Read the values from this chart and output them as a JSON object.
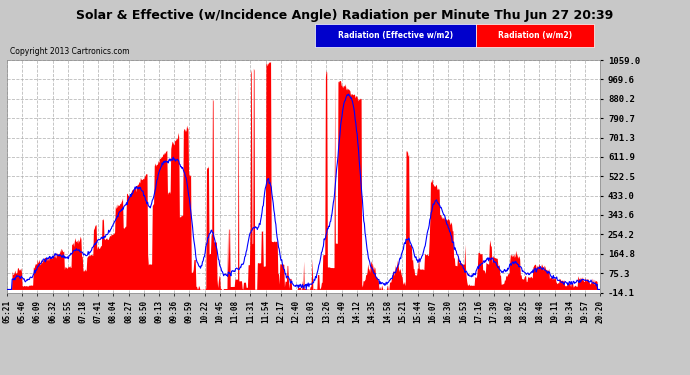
{
  "title": "Solar & Effective (w/Incidence Angle) Radiation per Minute Thu Jun 27 20:39",
  "copyright": "Copyright 2013 Cartronics.com",
  "legend_effective": "Radiation (Effective w/m2)",
  "legend_radiation": "Radiation (w/m2)",
  "yticks": [
    -14.1,
    75.3,
    164.8,
    254.2,
    343.6,
    433.0,
    522.5,
    611.9,
    701.3,
    790.7,
    880.2,
    969.6,
    1059.0
  ],
  "ymin": -14.1,
  "ymax": 1059.0,
  "xtick_labels": [
    "05:21",
    "05:46",
    "06:09",
    "06:32",
    "06:55",
    "07:18",
    "07:41",
    "08:04",
    "08:27",
    "08:50",
    "09:13",
    "09:36",
    "09:59",
    "10:22",
    "10:45",
    "11:08",
    "11:31",
    "11:54",
    "12:17",
    "12:40",
    "13:03",
    "13:26",
    "13:49",
    "14:12",
    "14:35",
    "14:58",
    "15:21",
    "15:44",
    "16:07",
    "16:30",
    "16:53",
    "17:16",
    "17:39",
    "18:02",
    "18:25",
    "18:48",
    "19:11",
    "19:34",
    "19:57",
    "20:20"
  ],
  "plot_bg_color": "#FFFFFF",
  "fig_bg_color": "#C8C8C8",
  "grid_color": "#AAAAAA",
  "red_fill_color": "#FF0000",
  "blue_line_color": "#0000FF",
  "legend_effective_bg": "#0000CC",
  "legend_radiation_bg": "#FF0000",
  "figsize": [
    6.9,
    3.75
  ],
  "dpi": 100
}
